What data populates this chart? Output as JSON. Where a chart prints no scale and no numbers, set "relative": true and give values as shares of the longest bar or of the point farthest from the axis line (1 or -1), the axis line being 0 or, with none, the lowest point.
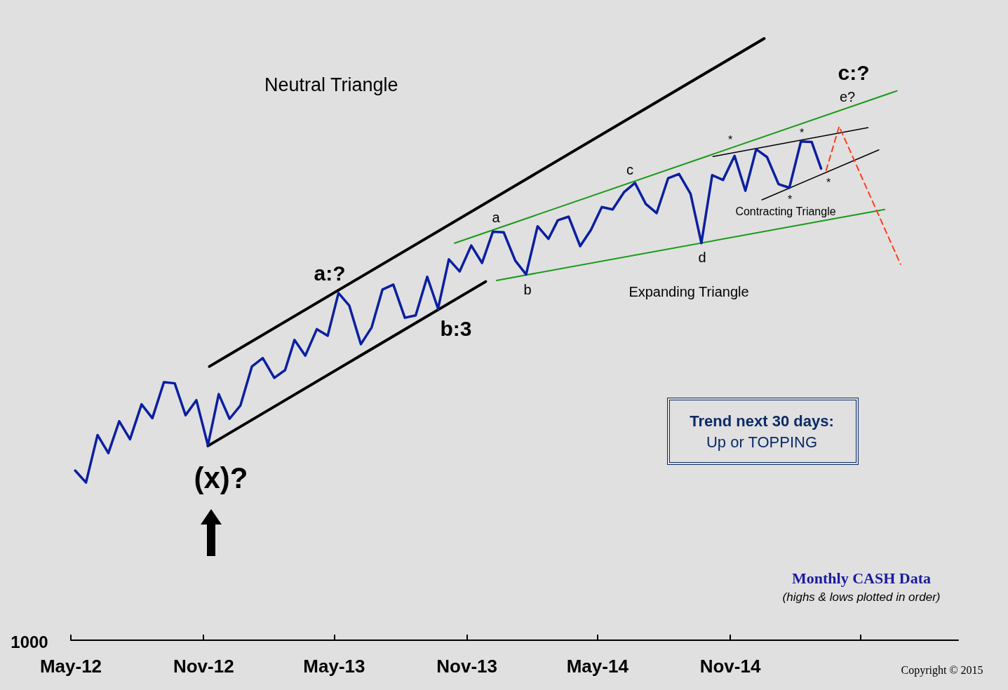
{
  "chart_data": {
    "type": "line",
    "title": "Neutral Triangle",
    "relative": true,
    "marker": "none",
    "xlim": [
      "2012-05-01",
      "2015-09-13"
    ],
    "xticks": [
      {
        "value": "2012-05-01",
        "label": "May-12"
      },
      {
        "value": "2012-11-01",
        "label": "Nov-12"
      },
      {
        "value": "2013-05-01",
        "label": "May-13"
      },
      {
        "value": "2013-11-01",
        "label": "Nov-13"
      },
      {
        "value": "2014-05-01",
        "label": "May-14"
      },
      {
        "value": "2014-11-01",
        "label": "Nov-14"
      },
      {
        "value": "2015-05-01",
        "label": null
      }
    ],
    "series": [
      {
        "color": "#0a1fa0",
        "x": [
          "2012-05-07",
          "2012-05-22",
          "2012-06-07",
          "2012-06-22",
          "2012-07-07",
          "2012-07-22",
          "2012-08-07",
          "2012-08-22",
          "2012-09-07",
          "2012-09-22",
          "2012-10-07",
          "2012-10-22",
          "2012-11-07",
          "2012-11-22",
          "2012-12-07",
          "2012-12-22",
          "2013-01-07",
          "2013-01-22",
          "2013-02-07",
          "2013-02-22",
          "2013-03-07",
          "2013-03-22",
          "2013-04-07",
          "2013-04-22",
          "2013-05-07",
          "2013-05-22",
          "2013-06-07",
          "2013-06-22",
          "2013-07-07",
          "2013-07-22",
          "2013-08-07",
          "2013-08-22",
          "2013-09-07",
          "2013-09-22",
          "2013-10-07",
          "2013-10-22",
          "2013-11-07",
          "2013-11-22",
          "2013-12-07",
          "2013-12-22",
          "2014-01-07",
          "2014-01-22",
          "2014-02-07",
          "2014-02-22",
          "2014-03-07",
          "2014-03-22",
          "2014-04-07",
          "2014-04-22",
          "2014-05-07",
          "2014-05-22",
          "2014-06-07",
          "2014-06-22",
          "2014-07-07",
          "2014-07-22",
          "2014-08-07",
          "2014-08-22",
          "2014-09-07",
          "2014-09-22",
          "2014-10-07",
          "2014-10-22",
          "2014-11-07",
          "2014-11-22",
          "2014-12-07",
          "2014-12-22",
          "2015-01-07",
          "2015-01-22",
          "2015-02-07",
          "2015-02-22",
          "2015-03-07"
        ],
        "values": [
          0.282,
          0.262,
          0.341,
          0.311,
          0.364,
          0.334,
          0.392,
          0.369,
          0.429,
          0.427,
          0.374,
          0.399,
          0.324,
          0.409,
          0.368,
          0.39,
          0.455,
          0.469,
          0.436,
          0.449,
          0.499,
          0.473,
          0.517,
          0.506,
          0.577,
          0.556,
          0.492,
          0.52,
          0.583,
          0.591,
          0.536,
          0.54,
          0.604,
          0.551,
          0.633,
          0.613,
          0.656,
          0.627,
          0.679,
          0.678,
          0.631,
          0.608,
          0.688,
          0.667,
          0.698,
          0.704,
          0.655,
          0.682,
          0.72,
          0.716,
          0.745,
          0.76,
          0.725,
          0.71,
          0.768,
          0.775,
          0.742,
          0.66,
          0.773,
          0.765,
          0.805,
          0.747,
          0.816,
          0.803,
          0.758,
          0.752,
          0.829,
          0.828,
          0.784
        ]
      },
      {
        "color": "#000000",
        "x": [
          "2012-11-09",
          "2014-12-18"
        ],
        "values": [
          0.455,
          1.0
        ]
      },
      {
        "color": "#000000",
        "x": [
          "2012-11-07",
          "2013-11-27"
        ],
        "values": [
          0.323,
          0.596
        ]
      },
      {
        "color": "#1a9a1a",
        "x": [
          "2013-10-15",
          "2015-06-20"
        ],
        "values": [
          0.66,
          0.913
        ]
      },
      {
        "color": "#1a9a1a",
        "x": [
          "2013-12-12",
          "2015-06-03"
        ],
        "values": [
          0.598,
          0.716
        ]
      },
      {
        "color": "#000000",
        "x": [
          "2014-10-08",
          "2015-05-11"
        ],
        "values": [
          0.804,
          0.852
        ]
      },
      {
        "color": "#000000",
        "x": [
          "2014-12-15",
          "2015-05-26"
        ],
        "values": [
          0.732,
          0.815
        ]
      },
      {
        "color": "#ff3b1f",
        "line_style": "dashed",
        "x": [
          "2015-03-14",
          "2015-04-01",
          "2015-06-25"
        ],
        "values": [
          0.781,
          0.854,
          0.625
        ]
      }
    ],
    "annotations": [
      "a:?",
      "b:3",
      "(x)?",
      "c:?",
      "a",
      "b",
      "c",
      "d",
      "e?",
      "*",
      "*",
      "*",
      "*",
      "Contracting Triangle",
      "Expanding Triangle",
      "1000",
      "Trend next 30 days:",
      "Up or TOPPING",
      "Monthly CASH Data",
      "(highs & lows plotted in order)",
      "Copyright © 2015"
    ]
  }
}
